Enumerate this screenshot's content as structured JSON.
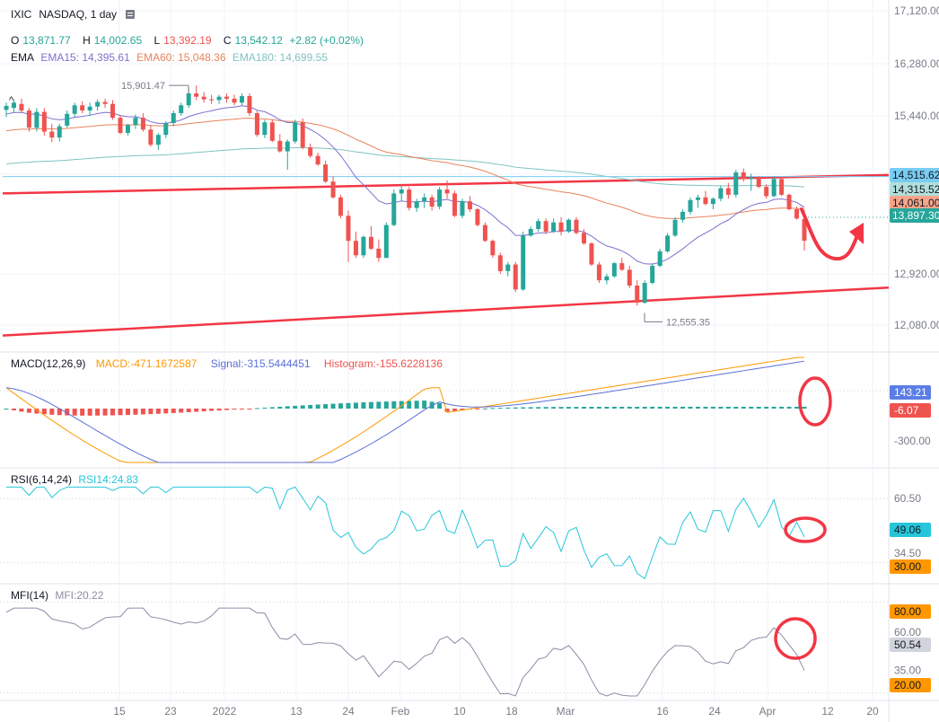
{
  "symbol": {
    "name": "IXIC",
    "descr": "NASDAQ, 1 day",
    "menu_icon": "menu-icon"
  },
  "ohlc": {
    "o_label": "O",
    "o": "13,871.77",
    "h_label": "H",
    "h": "14,002.65",
    "l_label": "L",
    "l": "13,392.19",
    "c_label": "C",
    "c": "13,542.12",
    "change": "+2.82 (+0.02%)"
  },
  "ema_legend": {
    "label": "EMA",
    "e15": "EMA15: 14,395.61",
    "e60": "EMA60: 15,048.36",
    "e180": "EMA180: 14,699.55"
  },
  "colors": {
    "up": "#26a69a",
    "down": "#ef5350",
    "ema15": "#7e6fcf",
    "ema60": "#e8825c",
    "ema180": "#7fc3c0",
    "channel": "#f23645",
    "annotation": "#f23645",
    "macd": "#ff9800",
    "signal": "#5b6fd6",
    "rsi": "#25c6da",
    "mfi": "#8e8ca6",
    "grid": "#f0f3fa",
    "axis_text": "#787b86"
  },
  "price_axis": {
    "ticks": [
      "17,120.00",
      "16,280.00",
      "15,440.00",
      "14,515.62",
      "12,920.00",
      "12,080.00"
    ]
  },
  "price_labels": [
    {
      "text": "14,515.62",
      "bg": "#79cdf2",
      "fg": "#131722"
    },
    {
      "text": "14,315.52",
      "bg": "#b2dfdb",
      "fg": "#131722"
    },
    {
      "text": "14,061.00",
      "bg": "#f7a58a",
      "fg": "#131722"
    },
    {
      "text": "13,897.30",
      "bg": "#26a69a",
      "fg": "#ffffff"
    }
  ],
  "high_marker": "15,901.47",
  "low_marker": "12,555.35",
  "macd_legend": {
    "label": "MACD(12,26,9)",
    "macd": "MACD:-471.1672587",
    "signal": "Signal:-315.5444451",
    "hist": "Histogram:-155.6228136"
  },
  "macd_axis": {
    "tick": "-300.00",
    "labels": [
      {
        "text": "143.21",
        "bg": "#5b7ee5"
      },
      {
        "text": "-6.07",
        "bg": "#ef5350"
      }
    ]
  },
  "rsi_legend": {
    "label": "RSI(6,14,24)",
    "value": "RSI14:24.83"
  },
  "rsi_axis": {
    "ticks": [
      "60.50",
      "34.50"
    ],
    "labels": [
      {
        "text": "49.06",
        "bg": "#25c6da"
      },
      {
        "text": "30.00",
        "bg": "#ff9800"
      }
    ]
  },
  "mfi_legend": {
    "label": "MFI(14)",
    "value": "MFI:20.22"
  },
  "mfi_axis": {
    "ticks": [
      "60.00",
      "35.00"
    ],
    "labels": [
      {
        "text": "80.00",
        "bg": "#ff9800"
      },
      {
        "text": "50.54",
        "bg": "#d1d4dc"
      },
      {
        "text": "20.00",
        "bg": "#ff9800"
      }
    ]
  },
  "x_axis": {
    "labels": [
      "15",
      "23",
      "2022",
      "13",
      "24",
      "Feb",
      "10",
      "18",
      "Mar",
      "16",
      "24",
      "Apr",
      "12",
      "20"
    ]
  },
  "chart_data": {
    "type": "candlestick",
    "symbol": "IXIC",
    "interval": "1 day",
    "price_range": [
      11850,
      17200
    ],
    "candles": [
      [
        15530,
        15640,
        15420,
        15590
      ],
      [
        15560,
        15690,
        15490,
        15640
      ],
      [
        15620,
        15700,
        15480,
        15520
      ],
      [
        15520,
        15560,
        15200,
        15260
      ],
      [
        15260,
        15560,
        15200,
        15500
      ],
      [
        15500,
        15560,
        15140,
        15200
      ],
      [
        15200,
        15320,
        15040,
        15110
      ],
      [
        15110,
        15320,
        15050,
        15280
      ],
      [
        15290,
        15520,
        15260,
        15470
      ],
      [
        15470,
        15640,
        15420,
        15600
      ],
      [
        15600,
        15660,
        15480,
        15520
      ],
      [
        15520,
        15640,
        15440,
        15580
      ],
      [
        15580,
        15690,
        15520,
        15650
      ],
      [
        15650,
        15700,
        15560,
        15620
      ],
      [
        15620,
        15680,
        15380,
        15410
      ],
      [
        15410,
        15450,
        15160,
        15180
      ],
      [
        15180,
        15320,
        15140,
        15300
      ],
      [
        15300,
        15460,
        15240,
        15410
      ],
      [
        15410,
        15480,
        15200,
        15230
      ],
      [
        15230,
        15300,
        14970,
        15000
      ],
      [
        15000,
        15180,
        14920,
        15150
      ],
      [
        15150,
        15360,
        15100,
        15330
      ],
      [
        15330,
        15520,
        15280,
        15480
      ],
      [
        15480,
        15640,
        15440,
        15600
      ],
      [
        15600,
        15860,
        15560,
        15780
      ],
      [
        15780,
        15901,
        15680,
        15730
      ],
      [
        15730,
        15800,
        15640,
        15690
      ],
      [
        15690,
        15760,
        15620,
        15680
      ],
      [
        15680,
        15760,
        15620,
        15730
      ],
      [
        15730,
        15780,
        15640,
        15700
      ],
      [
        15700,
        15760,
        15600,
        15640
      ],
      [
        15640,
        15780,
        15600,
        15740
      ],
      [
        15740,
        15780,
        15440,
        15480
      ],
      [
        15480,
        15520,
        15120,
        15150
      ],
      [
        15150,
        15380,
        15100,
        15340
      ],
      [
        15340,
        15380,
        15040,
        15060
      ],
      [
        15060,
        15160,
        14880,
        14900
      ],
      [
        14900,
        15080,
        14620,
        15050
      ],
      [
        15050,
        15380,
        15020,
        15340
      ],
      [
        15340,
        15400,
        14930,
        14960
      ],
      [
        14960,
        15020,
        14800,
        14830
      ],
      [
        14830,
        14880,
        14680,
        14700
      ],
      [
        14700,
        14760,
        14420,
        14440
      ],
      [
        14440,
        14520,
        14180,
        14200
      ],
      [
        14200,
        14240,
        13880,
        13920
      ],
      [
        13920,
        14000,
        13220,
        13540
      ],
      [
        13540,
        13680,
        13280,
        13320
      ],
      [
        13320,
        13620,
        13280,
        13600
      ],
      [
        13600,
        13760,
        13400,
        13420
      ],
      [
        13420,
        13560,
        13220,
        13280
      ],
      [
        13280,
        13820,
        13280,
        13780
      ],
      [
        13780,
        14320,
        13760,
        14260
      ],
      [
        14260,
        14380,
        14140,
        14320
      ],
      [
        14320,
        14360,
        14000,
        14040
      ],
      [
        14040,
        14180,
        13980,
        14140
      ],
      [
        14140,
        14260,
        14040,
        14200
      ],
      [
        14200,
        14240,
        14000,
        14060
      ],
      [
        14060,
        14360,
        14020,
        14320
      ],
      [
        14320,
        14460,
        14180,
        14260
      ],
      [
        14260,
        14300,
        13900,
        13920
      ],
      [
        13920,
        14180,
        13880,
        14140
      ],
      [
        14140,
        14220,
        13980,
        14020
      ],
      [
        14020,
        14040,
        13760,
        13780
      ],
      [
        13780,
        13820,
        13520,
        13540
      ],
      [
        13540,
        13560,
        13280,
        13320
      ],
      [
        13320,
        13360,
        13040,
        13080
      ],
      [
        13080,
        13220,
        13000,
        13180
      ],
      [
        13180,
        13220,
        12760,
        12800
      ],
      [
        12800,
        13680,
        12780,
        13620
      ],
      [
        13620,
        13760,
        13600,
        13720
      ],
      [
        13720,
        13880,
        13680,
        13840
      ],
      [
        13840,
        13880,
        13640,
        13680
      ],
      [
        13680,
        13880,
        13660,
        13820
      ],
      [
        13820,
        13900,
        13620,
        13680
      ],
      [
        13680,
        13880,
        13660,
        13860
      ],
      [
        13860,
        13900,
        13640,
        13660
      ],
      [
        13660,
        13720,
        13480,
        13500
      ],
      [
        13500,
        13520,
        13160,
        13180
      ],
      [
        13180,
        13220,
        12900,
        12940
      ],
      [
        12940,
        13040,
        12880,
        13000
      ],
      [
        13000,
        13220,
        12980,
        13200
      ],
      [
        13200,
        13280,
        13080,
        13100
      ],
      [
        13100,
        13160,
        12820,
        12860
      ],
      [
        12860,
        12940,
        12555,
        12600
      ],
      [
        12600,
        12940,
        12580,
        12900
      ],
      [
        12900,
        13200,
        12880,
        13160
      ],
      [
        13160,
        13420,
        13140,
        13380
      ],
      [
        13380,
        13660,
        13360,
        13620
      ],
      [
        13620,
        13900,
        13600,
        13860
      ],
      [
        13860,
        14020,
        13820,
        13980
      ],
      [
        13980,
        14200,
        13940,
        14160
      ],
      [
        14160,
        14240,
        14040,
        14200
      ],
      [
        14200,
        14300,
        14080,
        14100
      ],
      [
        14100,
        14200,
        14020,
        14180
      ],
      [
        14180,
        14380,
        14140,
        14340
      ],
      [
        14340,
        14420,
        14180,
        14240
      ],
      [
        14240,
        14620,
        14200,
        14580
      ],
      [
        14580,
        14640,
        14440,
        14480
      ],
      [
        14480,
        14560,
        14300,
        14500
      ],
      [
        14500,
        14520,
        14340,
        14360
      ],
      [
        14360,
        14400,
        14180,
        14220
      ],
      [
        14220,
        14520,
        14200,
        14480
      ],
      [
        14480,
        14500,
        14220,
        14240
      ],
      [
        14240,
        14260,
        14000,
        14020
      ],
      [
        14020,
        14060,
        13860,
        13880
      ],
      [
        13871,
        14002,
        13392,
        13542
      ]
    ],
    "channel_lines": [
      {
        "from": [
          0,
          14260
        ],
        "to": [
          1,
          14540
        ]
      },
      {
        "from": [
          0,
          12100
        ],
        "to": [
          1,
          12830
        ]
      }
    ],
    "macd": {
      "title": "MACD(12,26,9)",
      "macd": -471.17,
      "signal": -315.54,
      "histogram": -155.62
    },
    "rsi": {
      "title": "RSI(6,14,24)",
      "rsi14": 24.83,
      "levels": [
        30,
        60.5
      ]
    },
    "mfi": {
      "title": "MFI(14)",
      "value": 20.22,
      "levels": [
        20,
        80
      ]
    }
  }
}
